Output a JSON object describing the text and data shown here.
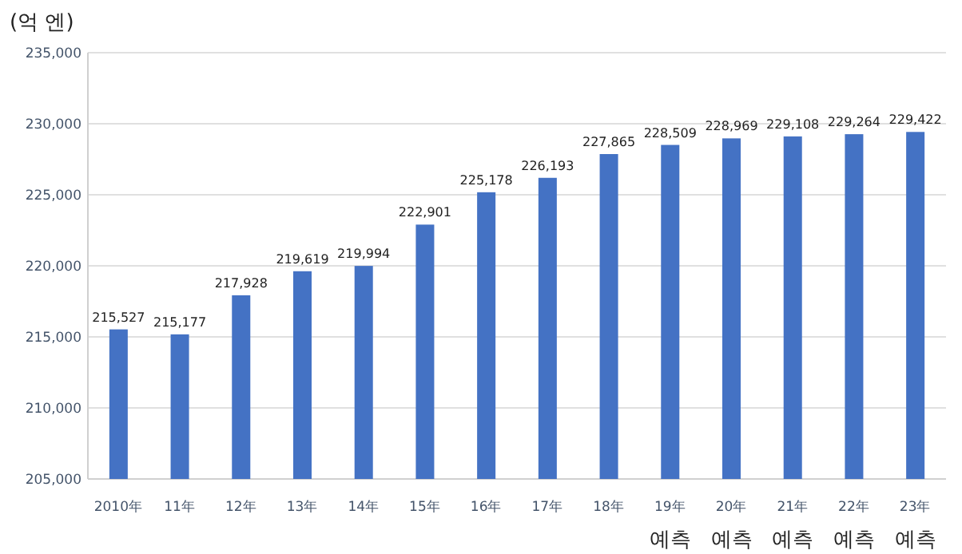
{
  "chart_data": {
    "type": "bar",
    "ylabel": "(억 엔)",
    "categories": [
      "2010年",
      "11年",
      "12年",
      "13年",
      "14年",
      "15年",
      "16年",
      "17年",
      "18年",
      "19年\n예측",
      "20年\n예측",
      "21年\n예측",
      "22年\n예측",
      "23年\n예측"
    ],
    "values": [
      215527,
      215177,
      217928,
      219619,
      219994,
      222901,
      225178,
      226193,
      227865,
      228509,
      228969,
      229108,
      229264,
      229422
    ],
    "color": "#4472c4",
    "value_labels": [
      "215,527",
      "215,177",
      "217,928",
      "219,619",
      "219,994",
      "222,901",
      "225,178",
      "226,193",
      "227,865",
      "228,509",
      "228,969",
      "229,108",
      "229,264",
      "229,422"
    ],
    "ylim": [
      205000,
      235000
    ],
    "yticks": [
      {
        "value": 205000,
        "label": "205,000"
      },
      {
        "value": 210000,
        "label": "210,000"
      },
      {
        "value": 215000,
        "label": "215,000"
      },
      {
        "value": 220000,
        "label": "220,000"
      },
      {
        "value": 225000,
        "label": "225,000"
      },
      {
        "value": 230000,
        "label": "230,000"
      },
      {
        "value": 235000,
        "label": "235,000"
      }
    ],
    "grid": "y"
  }
}
